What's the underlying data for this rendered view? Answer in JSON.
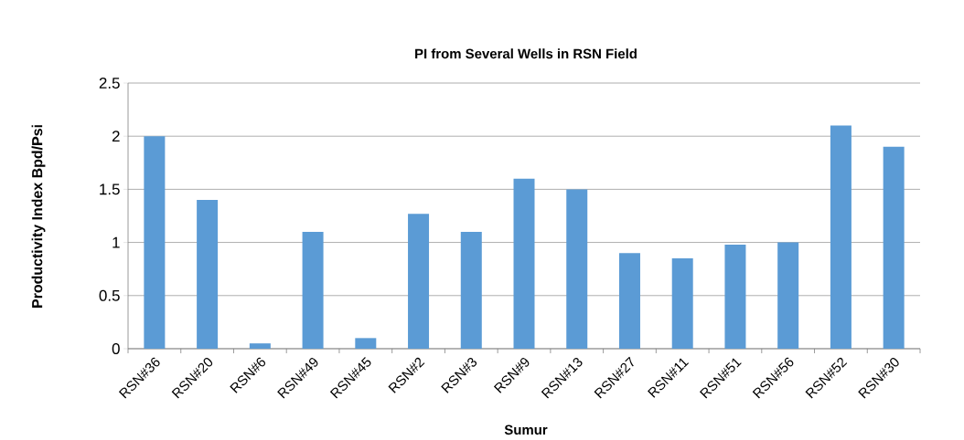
{
  "chart_data": {
    "type": "bar",
    "title": "PI from Several Wells in RSN Field",
    "xlabel": "Sumur",
    "ylabel": "Productivity Index Bpd/Psi",
    "categories": [
      "RSN#36",
      "RSN#20",
      "RSN#6",
      "RSN#49",
      "RSN#45",
      "RSN#2",
      "RSN#3",
      "RSN#9",
      "RSN#13",
      "RSN#27",
      "RSN#11",
      "RSN#51",
      "RSN#56",
      "RSN#52",
      "RSN#30"
    ],
    "values": [
      2.0,
      1.4,
      0.05,
      1.1,
      0.1,
      1.27,
      1.1,
      1.6,
      1.5,
      0.9,
      0.85,
      0.98,
      1.0,
      2.1,
      1.9
    ],
    "color": "#5b9bd5",
    "ylim": [
      0,
      2.5
    ],
    "yticks": [
      0,
      0.5,
      1,
      1.5,
      2,
      2.5
    ],
    "grid": "y"
  }
}
